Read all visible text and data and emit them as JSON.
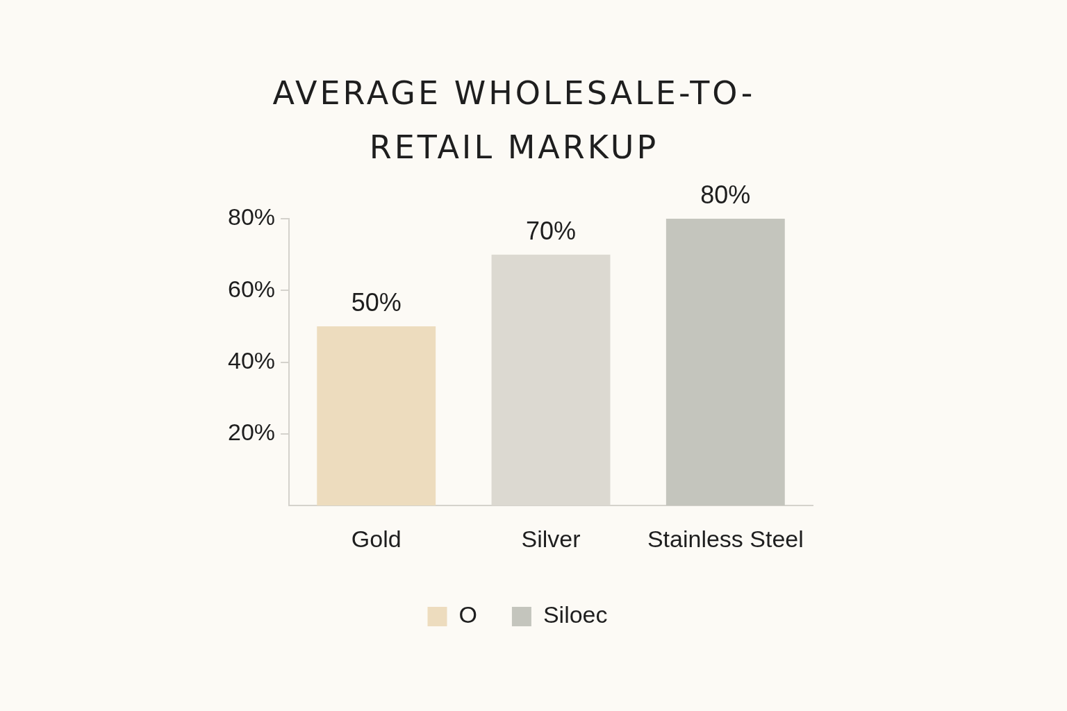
{
  "chart_data": {
    "type": "bar",
    "title": "AVERAGE WHOLESALE-TO-RETAIL MARKUP",
    "categories": [
      "Gold",
      "Silver",
      "Stainless Steel"
    ],
    "series": [
      {
        "name": "O",
        "color": "#eddcbe",
        "values": [
          50,
          null,
          null
        ],
        "value_labels": [
          "50%",
          null,
          null
        ]
      },
      {
        "name": "Siloec",
        "color": "#c4c5bd",
        "colors": [
          null,
          "#dcd9d1",
          "#c4c5bd"
        ],
        "values": [
          null,
          70,
          80
        ],
        "value_labels": [
          null,
          "70%",
          "80%"
        ]
      }
    ],
    "ylim": [
      0,
      80
    ],
    "yticks": [
      {
        "value": 20,
        "label": "20%"
      },
      {
        "value": 40,
        "label": "40%"
      },
      {
        "value": 60,
        "label": "60%"
      },
      {
        "value": 80,
        "label": "80%"
      }
    ],
    "legend": "bottom",
    "grid": false
  }
}
